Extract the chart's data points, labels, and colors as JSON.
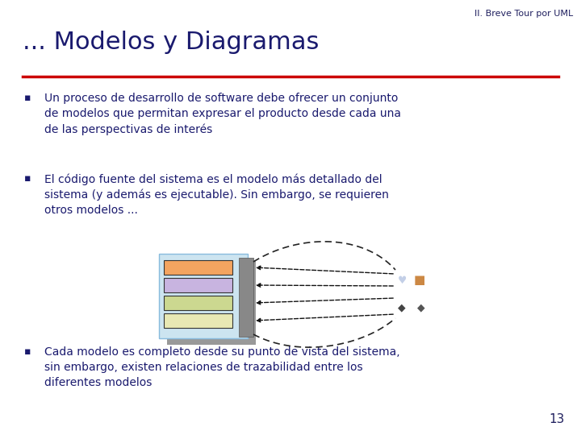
{
  "bg_color": "#ffffff",
  "header_text": "II. Breve Tour por UML",
  "header_color": "#1f1f5e",
  "header_fontsize": 8,
  "title_text": "... Modelos y Diagramas",
  "title_color": "#1a1a6e",
  "title_fontsize": 22,
  "red_line_color": "#cc0000",
  "bullet_color": "#1a1a6e",
  "bullet_fontsize": 10,
  "bullets": [
    "Un proceso de desarrollo de software debe ofrecer un conjunto\nde modelos que permitan expresar el producto desde cada una\nde las perspectivas de interés",
    "El código fuente del sistema es el modelo más detallado del\nsistema (y además es ejecutable). Sin embargo, se requieren\notros modelos ...",
    "Cada modelo es completo desde su punto de vista del sistema,\nsin embargo, existen relaciones de trazabilidad entre los\ndiferentes modelos"
  ],
  "page_number": "13",
  "bar_colors": [
    "#f4a460",
    "#c8b4e0",
    "#ccd890",
    "#e8e8b4"
  ],
  "diagram_bg": "#cce4f0",
  "diagram_shadow": "#999999"
}
